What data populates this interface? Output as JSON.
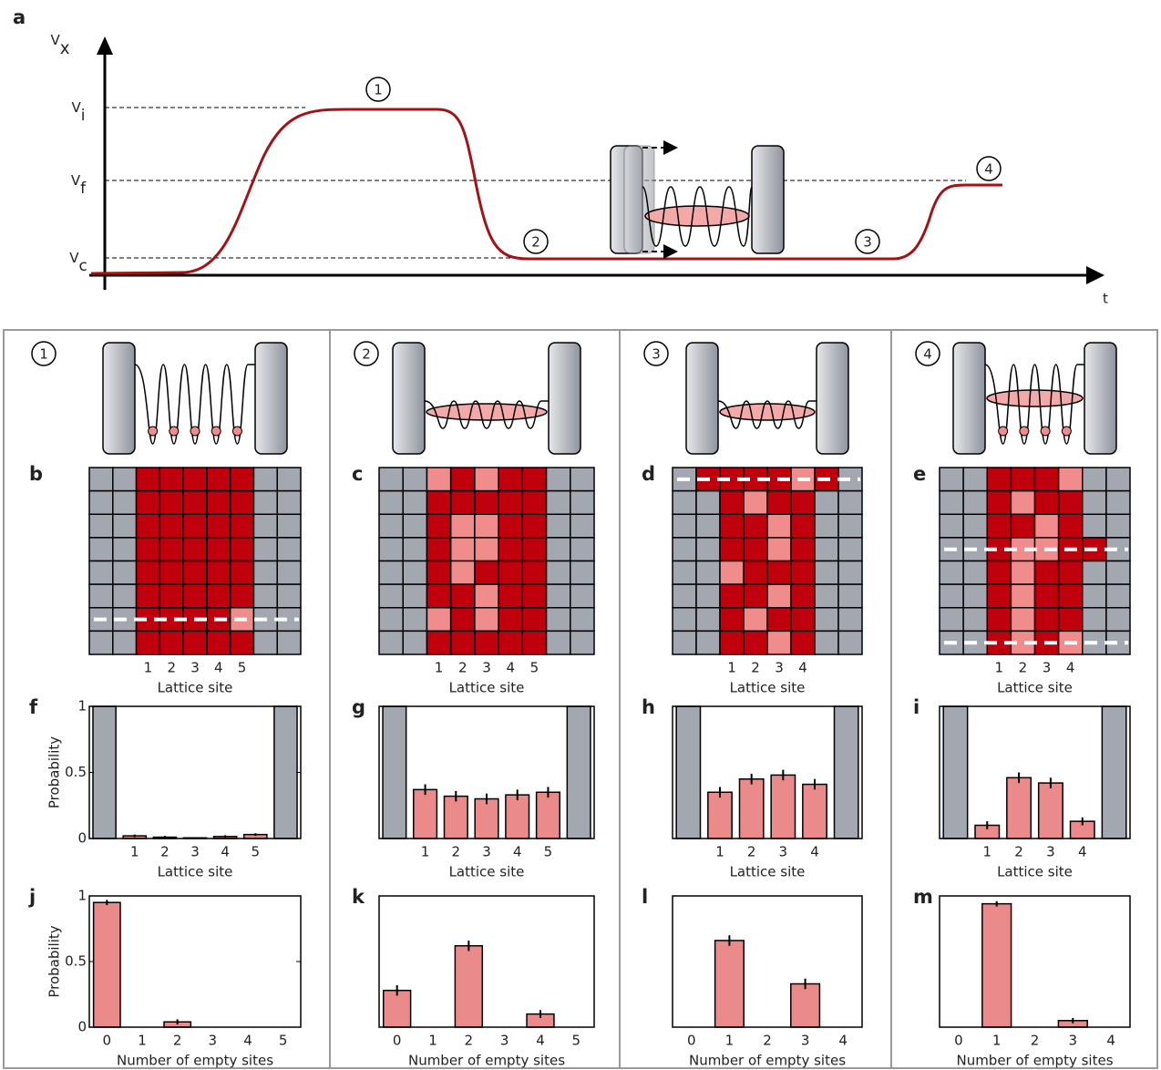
{
  "chart_data": [
    {
      "type": "schematic",
      "label": "a",
      "ylabel": [
        "V",
        "x"
      ],
      "xlabel": "t",
      "levels": [
        [
          "V",
          "i"
        ],
        [
          "V",
          "f"
        ],
        [
          "V",
          "c"
        ]
      ],
      "stages": [
        "1",
        "2",
        "3",
        "4"
      ],
      "color": "#a01418"
    },
    {
      "type": "heatmap",
      "label": "b",
      "stage": "1",
      "categories": [
        null,
        null,
        "1",
        "2",
        "3",
        "4",
        "5",
        null,
        null
      ],
      "xlabel": "Lattice site",
      "colors": [
        "#a3a7b0",
        "#f08c8c",
        "#c0000c"
      ],
      "dashed_rows": [
        6
      ],
      "cells": [
        [
          0,
          0,
          2,
          2,
          2,
          2,
          2,
          0,
          0
        ],
        [
          0,
          0,
          2,
          2,
          2,
          2,
          2,
          0,
          0
        ],
        [
          0,
          0,
          2,
          2,
          2,
          2,
          2,
          0,
          0
        ],
        [
          0,
          0,
          2,
          2,
          2,
          2,
          2,
          0,
          0
        ],
        [
          0,
          0,
          2,
          2,
          2,
          2,
          2,
          0,
          0
        ],
        [
          0,
          0,
          2,
          2,
          2,
          2,
          2,
          0,
          0
        ],
        [
          0,
          0,
          2,
          2,
          2,
          2,
          1,
          0,
          0
        ],
        [
          0,
          0,
          2,
          2,
          2,
          2,
          2,
          0,
          0
        ]
      ]
    },
    {
      "type": "heatmap",
      "label": "c",
      "stage": "2",
      "categories": [
        null,
        null,
        "1",
        "2",
        "3",
        "4",
        "5",
        null,
        null
      ],
      "xlabel": "Lattice site",
      "colors": [
        "#a3a7b0",
        "#f08c8c",
        "#c0000c"
      ],
      "dashed_rows": [],
      "cells": [
        [
          0,
          0,
          1,
          2,
          1,
          2,
          2,
          0,
          0
        ],
        [
          0,
          0,
          2,
          2,
          2,
          2,
          2,
          0,
          0
        ],
        [
          0,
          0,
          2,
          1,
          1,
          2,
          2,
          0,
          0
        ],
        [
          0,
          0,
          2,
          1,
          1,
          2,
          2,
          0,
          0
        ],
        [
          0,
          0,
          2,
          1,
          2,
          2,
          2,
          0,
          0
        ],
        [
          0,
          0,
          2,
          2,
          1,
          2,
          2,
          0,
          0
        ],
        [
          0,
          0,
          1,
          2,
          1,
          2,
          2,
          0,
          0
        ],
        [
          0,
          0,
          2,
          2,
          2,
          2,
          2,
          0,
          0
        ]
      ]
    },
    {
      "type": "heatmap",
      "label": "d",
      "stage": "3",
      "categories": [
        null,
        null,
        "1",
        "2",
        "3",
        "4",
        null,
        null
      ],
      "xlabel": "Lattice site",
      "colors": [
        "#a3a7b0",
        "#f08c8c",
        "#c0000c"
      ],
      "dashed_rows": [
        0
      ],
      "cells": [
        [
          0,
          2,
          2,
          2,
          2,
          1,
          2,
          0
        ],
        [
          0,
          0,
          2,
          1,
          2,
          2,
          0,
          0
        ],
        [
          0,
          0,
          2,
          2,
          1,
          2,
          0,
          0
        ],
        [
          0,
          0,
          2,
          2,
          1,
          2,
          0,
          0
        ],
        [
          0,
          0,
          1,
          2,
          2,
          2,
          0,
          0
        ],
        [
          0,
          0,
          2,
          2,
          1,
          2,
          0,
          0
        ],
        [
          0,
          0,
          2,
          1,
          2,
          2,
          0,
          0
        ],
        [
          0,
          0,
          2,
          2,
          1,
          2,
          0,
          0
        ]
      ]
    },
    {
      "type": "heatmap",
      "label": "e",
      "stage": "4",
      "categories": [
        null,
        null,
        "1",
        "2",
        "3",
        "4",
        null,
        null
      ],
      "xlabel": "Lattice site",
      "colors": [
        "#a3a7b0",
        "#f08c8c",
        "#c0000c"
      ],
      "dashed_rows": [
        3,
        7
      ],
      "cells": [
        [
          0,
          0,
          2,
          2,
          2,
          1,
          0,
          0
        ],
        [
          0,
          0,
          2,
          1,
          2,
          2,
          0,
          0
        ],
        [
          0,
          0,
          2,
          2,
          1,
          2,
          0,
          0
        ],
        [
          0,
          0,
          2,
          1,
          1,
          2,
          2,
          0
        ],
        [
          0,
          0,
          2,
          1,
          2,
          2,
          0,
          0
        ],
        [
          0,
          0,
          2,
          1,
          2,
          2,
          0,
          0
        ],
        [
          0,
          0,
          2,
          1,
          2,
          2,
          0,
          0
        ],
        [
          0,
          0,
          2,
          1,
          2,
          1,
          0,
          0
        ]
      ]
    },
    {
      "type": "bar",
      "label": "f",
      "categories": [
        null,
        "1",
        "2",
        "3",
        "4",
        "5",
        null
      ],
      "values": [
        1,
        0.02,
        0.01,
        0.005,
        0.015,
        0.03,
        1
      ],
      "errors": [
        null,
        0.01,
        0.01,
        0.005,
        0.01,
        0.01,
        null
      ],
      "colors": [
        "#a3a7b0",
        "#ea8a8a",
        "#ea8a8a",
        "#ea8a8a",
        "#ea8a8a",
        "#ea8a8a",
        "#a3a7b0"
      ],
      "ylim": [
        0,
        1
      ],
      "yticks": [
        0,
        0.5,
        1
      ],
      "ylabel": "Probability",
      "xlabel": "Lattice site"
    },
    {
      "type": "bar",
      "label": "g",
      "categories": [
        null,
        "1",
        "2",
        "3",
        "4",
        "5",
        null
      ],
      "values": [
        1,
        0.37,
        0.32,
        0.3,
        0.33,
        0.35,
        1
      ],
      "errors": [
        null,
        0.04,
        0.04,
        0.04,
        0.04,
        0.04,
        null
      ],
      "colors": [
        "#a3a7b0",
        "#ea8a8a",
        "#ea8a8a",
        "#ea8a8a",
        "#ea8a8a",
        "#ea8a8a",
        "#a3a7b0"
      ],
      "ylim": [
        0,
        1
      ],
      "xlabel": "Lattice site"
    },
    {
      "type": "bar",
      "label": "h",
      "categories": [
        null,
        "1",
        "2",
        "3",
        "4",
        null
      ],
      "values": [
        1,
        0.35,
        0.45,
        0.48,
        0.41,
        1
      ],
      "errors": [
        null,
        0.04,
        0.04,
        0.04,
        0.04,
        null
      ],
      "colors": [
        "#a3a7b0",
        "#ea8a8a",
        "#ea8a8a",
        "#ea8a8a",
        "#ea8a8a",
        "#a3a7b0"
      ],
      "ylim": [
        0,
        1
      ],
      "xlabel": "Lattice site"
    },
    {
      "type": "bar",
      "label": "i",
      "categories": [
        null,
        "1",
        "2",
        "3",
        "4",
        null
      ],
      "values": [
        1,
        0.1,
        0.46,
        0.42,
        0.13,
        1
      ],
      "errors": [
        null,
        0.03,
        0.04,
        0.04,
        0.03,
        null
      ],
      "colors": [
        "#a3a7b0",
        "#ea8a8a",
        "#ea8a8a",
        "#ea8a8a",
        "#ea8a8a",
        "#a3a7b0"
      ],
      "ylim": [
        0,
        1
      ],
      "xlabel": "Lattice site"
    },
    {
      "type": "bar",
      "label": "j",
      "categories": [
        "0",
        "1",
        "2",
        "3",
        "4",
        "5"
      ],
      "values": [
        0.95,
        0,
        0.04,
        0,
        0,
        0
      ],
      "errors": [
        0.02,
        0,
        0.02,
        0,
        0,
        0
      ],
      "color": "#ea8a8a",
      "ylim": [
        0,
        1
      ],
      "yticks": [
        0,
        0.5,
        1
      ],
      "ylabel": "Probability",
      "xlabel": "Number of empty sites"
    },
    {
      "type": "bar",
      "label": "k",
      "categories": [
        "0",
        "1",
        "2",
        "3",
        "4",
        "5"
      ],
      "values": [
        0.28,
        0,
        0.62,
        0,
        0.1,
        0
      ],
      "errors": [
        0.04,
        0,
        0.04,
        0,
        0.03,
        0
      ],
      "color": "#ea8a8a",
      "ylim": [
        0,
        1
      ],
      "xlabel": "Number of empty sites"
    },
    {
      "type": "bar",
      "label": "l",
      "categories": [
        "0",
        "1",
        "2",
        "3",
        "4"
      ],
      "values": [
        0,
        0.66,
        0,
        0.33,
        0
      ],
      "errors": [
        0,
        0.04,
        0,
        0.04,
        0
      ],
      "color": "#ea8a8a",
      "ylim": [
        0,
        1
      ],
      "xlabel": "Number of empty sites"
    },
    {
      "type": "bar",
      "label": "m",
      "categories": [
        "0",
        "1",
        "2",
        "3",
        "4"
      ],
      "values": [
        0,
        0.94,
        0,
        0.05,
        0
      ],
      "errors": [
        0,
        0.02,
        0,
        0.02,
        0
      ],
      "color": "#ea8a8a",
      "ylim": [
        0,
        1
      ],
      "xlabel": "Number of empty sites"
    }
  ]
}
